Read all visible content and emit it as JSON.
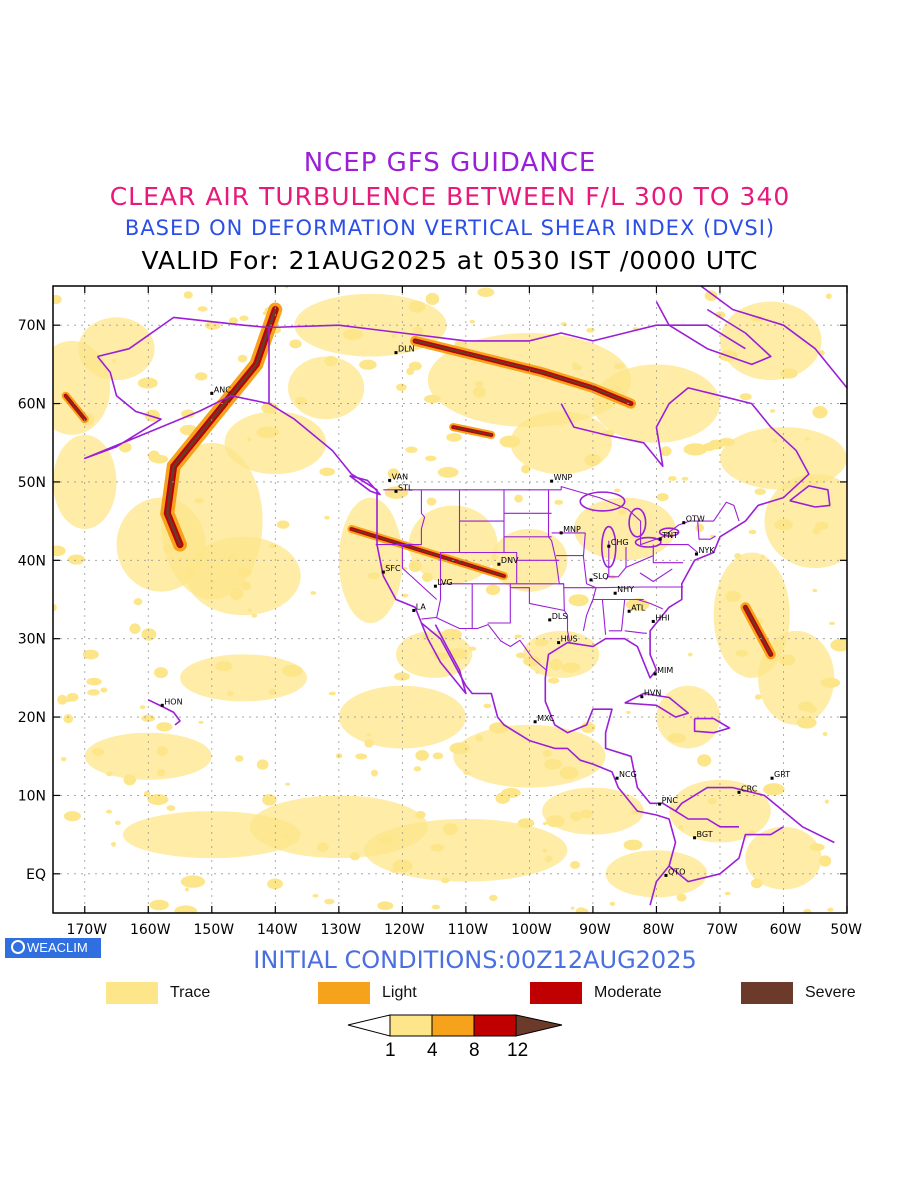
{
  "titles": {
    "line1": "NCEP GFS GUIDANCE",
    "line2": "CLEAR AIR TURBULENCE BETWEEN F/L 300 TO 340",
    "line3": "BASED ON DEFORMATION VERTICAL SHEAR INDEX (DVSI)",
    "line4": "VALID For: 21AUG2025 at 0530 IST /0000 UTC"
  },
  "colors": {
    "line1": "#9a1fd6",
    "line2": "#e8197a",
    "line3": "#2b4fe6",
    "line4": "#000000",
    "init": "#4a6fe0",
    "boundary": "#9b1fd6",
    "trace": "#fde68a",
    "light": "#f7a21b",
    "moderate": "#c00000",
    "severe": "#6b3a2a"
  },
  "map": {
    "lat_labels": [
      "70N",
      "60N",
      "50N",
      "40N",
      "30N",
      "20N",
      "10N",
      "EQ"
    ],
    "lon_labels": [
      "170W",
      "160W",
      "150W",
      "140W",
      "130W",
      "120W",
      "110W",
      "100W",
      "90W",
      "80W",
      "70W",
      "60W",
      "50W"
    ],
    "stations": [
      "ANC",
      "DLN",
      "VAN",
      "STL",
      "WNP",
      "MNP",
      "CHG",
      "TNT",
      "OTW",
      "NYK",
      "SFC",
      "LVG",
      "DNV",
      "SLO",
      "NHY",
      "ATL",
      "LA",
      "DLS",
      "HUS",
      "HHI",
      "MIM",
      "HVN",
      "HON",
      "MXC",
      "NCG",
      "PNC",
      "BGT",
      "CRC",
      "GRT",
      "QTO"
    ]
  },
  "badge": "WEACLIM",
  "initial": "INITIAL CONDITIONS:00Z12AUG2025",
  "legend": [
    {
      "label": "Trace",
      "color": "#fde68a"
    },
    {
      "label": "Light",
      "color": "#f7a21b"
    },
    {
      "label": "Moderate",
      "color": "#c00000"
    },
    {
      "label": "Severe",
      "color": "#6b3a2a"
    }
  ],
  "colorbar": [
    "1",
    "4",
    "8",
    "12"
  ]
}
